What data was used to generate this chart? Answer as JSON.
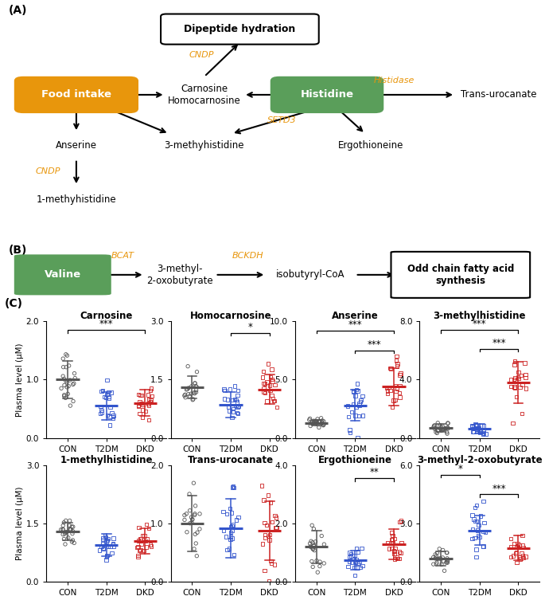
{
  "scatter_plots": [
    {
      "title": "Carnosine",
      "ylabel": "Plasma level (μM)",
      "ylim": [
        0,
        2.0
      ],
      "yticks": [
        0.0,
        1.0,
        2.0
      ],
      "groups": [
        "CON",
        "T2DM",
        "DKD"
      ],
      "significance": [
        {
          "from": 0,
          "to": 2,
          "label": "***",
          "y": 1.85
        }
      ],
      "CON_mean": 1.0,
      "CON_sd": 0.32,
      "T2DM_mean": 0.55,
      "T2DM_sd": 0.24,
      "DKD_mean": 0.6,
      "DKD_sd": 0.22,
      "CON_n": 25,
      "T2DM_n": 22,
      "DKD_n": 22
    },
    {
      "title": "Homocarnosine",
      "ylabel": "Plasma level (μM)",
      "ylim": [
        0,
        3.0
      ],
      "yticks": [
        0.0,
        1.5,
        3.0
      ],
      "groups": [
        "CON",
        "T2DM",
        "DKD"
      ],
      "significance": [
        {
          "from": 1,
          "to": 2,
          "label": "*",
          "y": 2.7
        }
      ],
      "CON_mean": 1.3,
      "CON_sd": 0.28,
      "T2DM_mean": 0.85,
      "T2DM_sd": 0.32,
      "DKD_mean": 1.25,
      "DKD_sd": 0.38,
      "CON_n": 22,
      "T2DM_n": 22,
      "DKD_n": 22
    },
    {
      "title": "Anserine",
      "ylabel": "Plasma level (μM)",
      "ylim": [
        0,
        10.0
      ],
      "yticks": [
        0.0,
        5.0,
        10.0
      ],
      "groups": [
        "CON",
        "T2DM",
        "DKD"
      ],
      "significance": [
        {
          "from": 0,
          "to": 2,
          "label": "***",
          "y": 9.2
        },
        {
          "from": 1,
          "to": 2,
          "label": "***",
          "y": 7.5
        }
      ],
      "CON_mean": 1.3,
      "CON_sd": 0.25,
      "T2DM_mean": 2.8,
      "T2DM_sd": 1.3,
      "DKD_mean": 4.4,
      "DKD_sd": 1.6,
      "CON_n": 25,
      "T2DM_n": 22,
      "DKD_n": 22
    },
    {
      "title": "3-methylhistidine",
      "ylabel": "Plasma level (μM)",
      "ylim": [
        0,
        8.0
      ],
      "yticks": [
        0.0,
        4.0,
        8.0
      ],
      "groups": [
        "CON",
        "T2DM",
        "DKD"
      ],
      "significance": [
        {
          "from": 0,
          "to": 2,
          "label": "***",
          "y": 7.4
        },
        {
          "from": 1,
          "to": 2,
          "label": "***",
          "y": 6.1
        }
      ],
      "CON_mean": 0.7,
      "CON_sd": 0.28,
      "T2DM_mean": 0.65,
      "T2DM_sd": 0.32,
      "DKD_mean": 3.8,
      "DKD_sd": 1.4,
      "CON_n": 25,
      "T2DM_n": 22,
      "DKD_n": 22
    },
    {
      "title": "1-methylhistidine",
      "ylabel": "Plasma level (μM)",
      "ylim": [
        0,
        3.0
      ],
      "yticks": [
        0.0,
        1.5,
        3.0
      ],
      "groups": [
        "CON",
        "T2DM",
        "DKD"
      ],
      "significance": [],
      "CON_mean": 1.3,
      "CON_sd": 0.22,
      "T2DM_mean": 0.95,
      "T2DM_sd": 0.28,
      "DKD_mean": 1.05,
      "DKD_sd": 0.32,
      "CON_n": 25,
      "T2DM_n": 22,
      "DKD_n": 22
    },
    {
      "title": "Trans-urocanate",
      "ylabel": "Plasma level (μM)",
      "ylim": [
        0,
        2.0
      ],
      "yticks": [
        0.0,
        1.0,
        2.0
      ],
      "groups": [
        "CON",
        "T2DM",
        "DKD"
      ],
      "significance": [],
      "CON_mean": 1.0,
      "CON_sd": 0.48,
      "T2DM_mean": 0.92,
      "T2DM_sd": 0.5,
      "DKD_mean": 0.88,
      "DKD_sd": 0.5,
      "CON_n": 22,
      "T2DM_n": 22,
      "DKD_n": 22
    },
    {
      "title": "Ergothioneine",
      "ylabel": "Plasma level (μM)",
      "ylim": [
        0,
        4.0
      ],
      "yticks": [
        0.0,
        2.0,
        4.0
      ],
      "groups": [
        "CON",
        "T2DM",
        "DKD"
      ],
      "significance": [
        {
          "from": 1,
          "to": 2,
          "label": "**",
          "y": 3.55
        }
      ],
      "CON_mean": 1.2,
      "CON_sd": 0.55,
      "T2DM_mean": 0.75,
      "T2DM_sd": 0.32,
      "DKD_mean": 1.3,
      "DKD_sd": 0.52,
      "CON_n": 22,
      "T2DM_n": 22,
      "DKD_n": 22
    },
    {
      "title": "3-methyl-2-oxobutyrate",
      "ylabel": "Plasma level (μM)",
      "ylim": [
        0,
        6.0
      ],
      "yticks": [
        0.0,
        3.0,
        6.0
      ],
      "groups": [
        "CON",
        "T2DM",
        "DKD"
      ],
      "significance": [
        {
          "from": 0,
          "to": 1,
          "label": "*",
          "y": 5.5
        },
        {
          "from": 1,
          "to": 2,
          "label": "***",
          "y": 4.5
        }
      ],
      "CON_mean": 1.2,
      "CON_sd": 0.38,
      "T2DM_mean": 2.65,
      "T2DM_sd": 0.75,
      "DKD_mean": 1.75,
      "DKD_sd": 0.65,
      "CON_n": 25,
      "T2DM_n": 22,
      "DKD_n": 22
    }
  ],
  "colors": {
    "CON": "#555555",
    "T2DM": "#3355CC",
    "DKD": "#CC2222",
    "orange": "#E8960C",
    "green_box": "#5A9E5A",
    "orange_box": "#E8960C"
  }
}
